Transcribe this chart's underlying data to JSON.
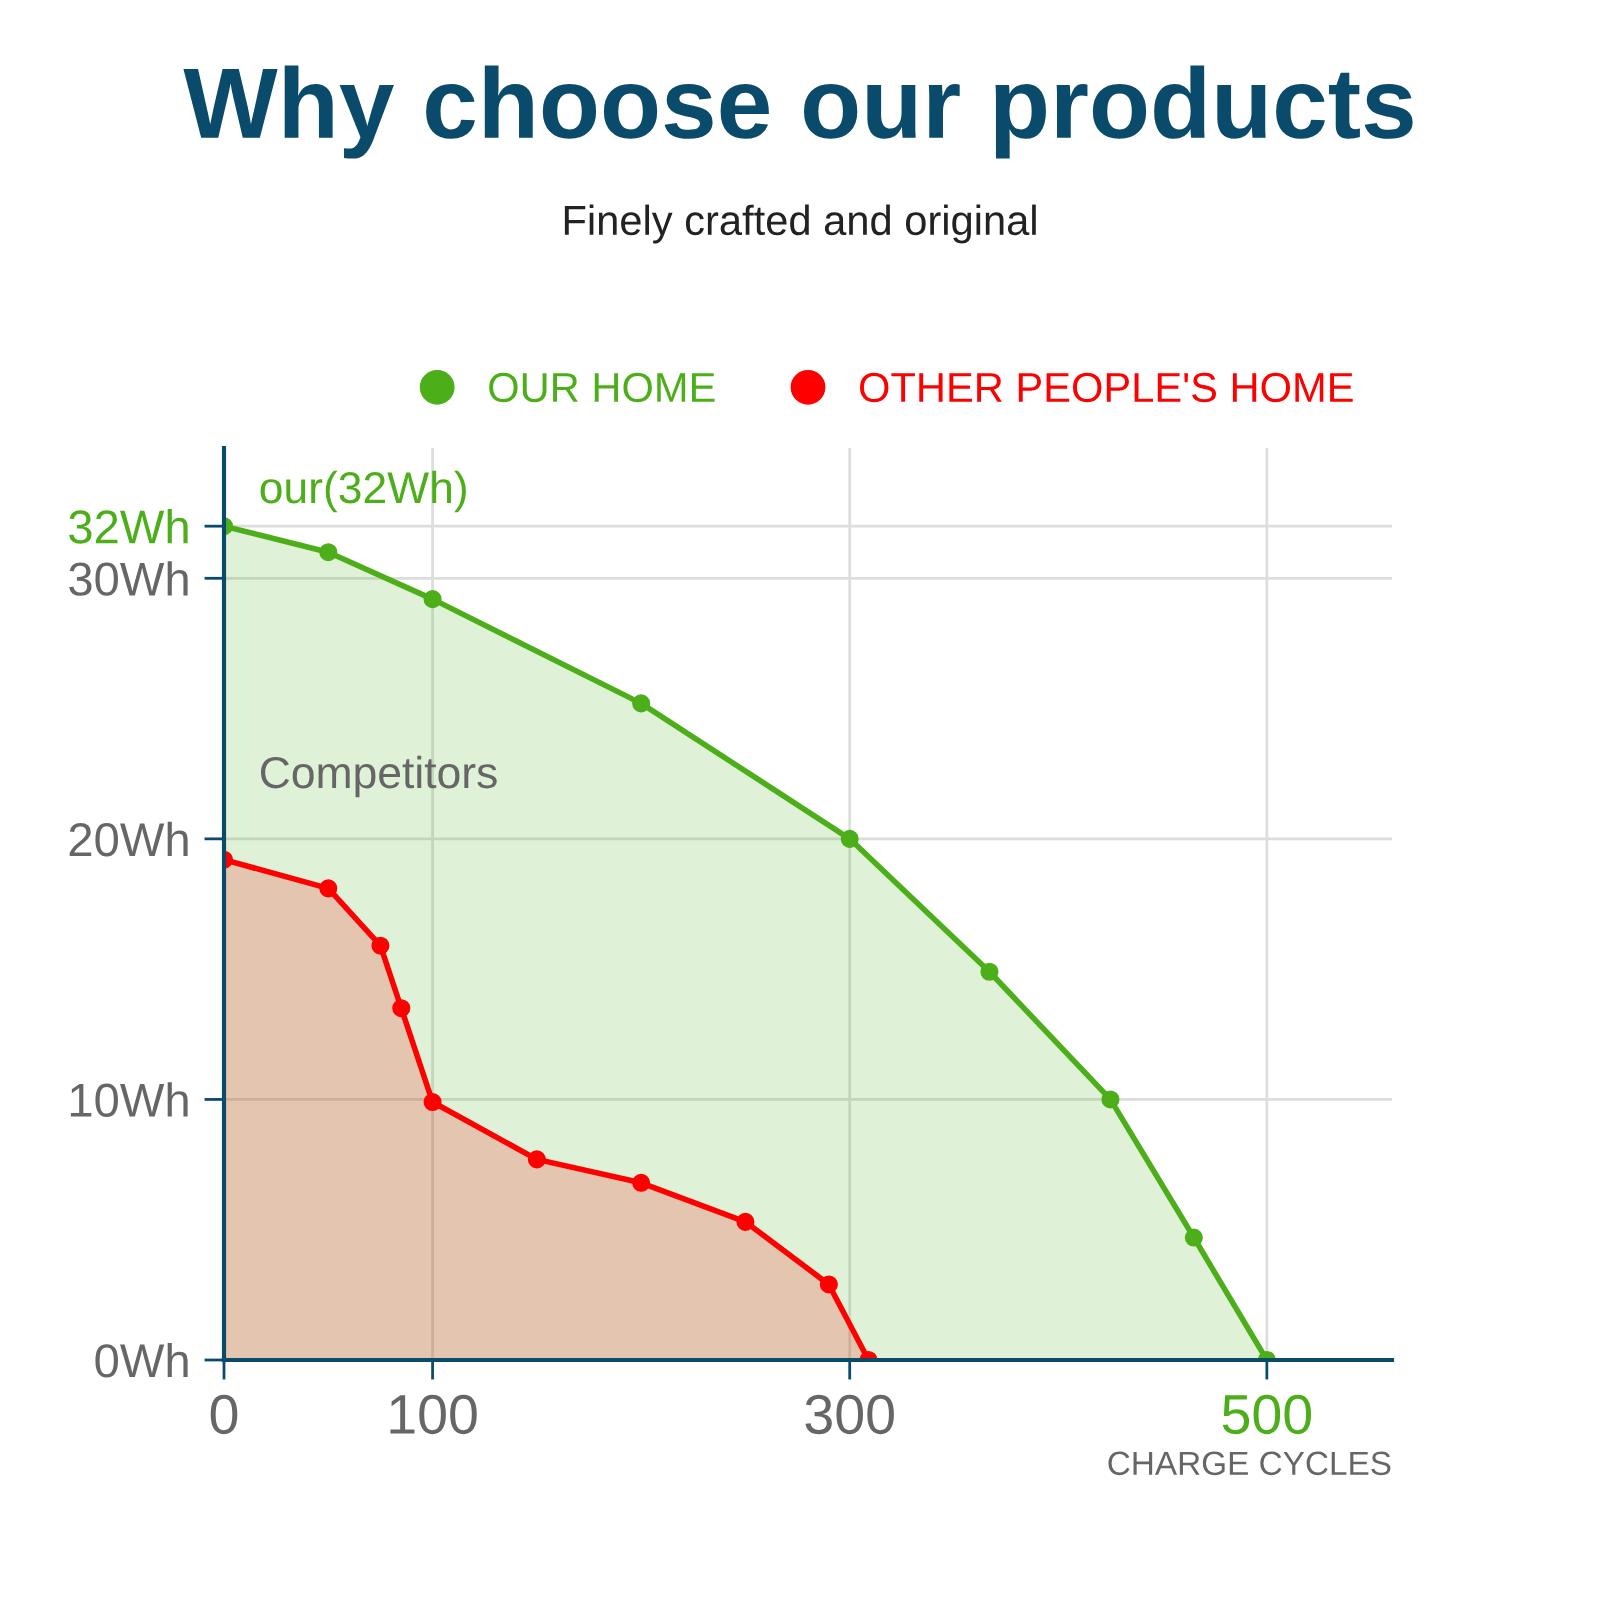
{
  "chart_data": {
    "type": "area",
    "title": "Why choose our products",
    "subtitle": "Finely crafted and original",
    "xlabel": "CHARGE CYCLES",
    "series": [
      {
        "name": "OUR HOME",
        "color": "#4caf1a",
        "x": [
          0,
          50,
          100,
          200,
          300,
          367,
          425,
          465,
          500
        ],
        "values": [
          32,
          31.0,
          29.2,
          25.2,
          20,
          14.9,
          10,
          4.7,
          0
        ]
      },
      {
        "name": "OTHER PEOPLE'S HOME",
        "color": "#ff0000",
        "x": [
          0,
          50,
          75,
          85,
          100,
          150,
          200,
          250,
          290,
          309
        ],
        "values": [
          19.2,
          18.1,
          15.9,
          13.5,
          9.9,
          7.7,
          6.8,
          5.3,
          2.9,
          0
        ]
      }
    ],
    "annotations": [
      {
        "text": "our(32Wh)",
        "x": 0,
        "y": 32
      },
      "Competitors"
    ],
    "xlim": [
      0,
      560
    ],
    "xticks": [
      0,
      100,
      300,
      500
    ],
    "ylim": [
      0,
      35
    ],
    "yticks": [
      {
        "value": 0,
        "label": "0Wh"
      },
      {
        "value": 10,
        "label": "10Wh"
      },
      {
        "value": 20,
        "label": "20Wh"
      },
      {
        "value": 30,
        "label": "30Wh"
      },
      {
        "value": 32,
        "label": "32Wh"
      }
    ],
    "grid": true,
    "legend": "top right",
    "marker": "circle"
  }
}
